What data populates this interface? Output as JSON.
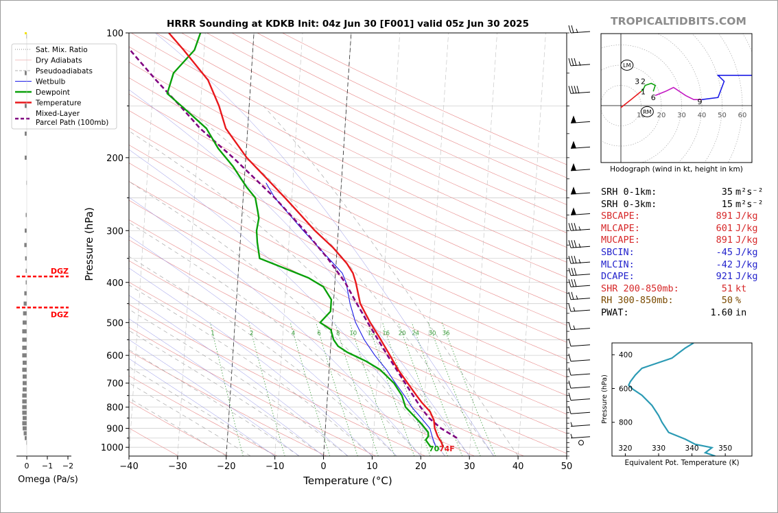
{
  "title": "HRRR Sounding at KDKB Init: 04z Jun 30 [F001] valid 05z Jun 30 2025",
  "brand": "TROPICALTIDBITS.COM",
  "colors": {
    "temperature": "#e8181c",
    "dewpoint": "#0aa00a",
    "parcel": "#800080",
    "wetbulb": "#1a1ae6",
    "dgz": "#ff0000",
    "theta_e": "#2b9ab4",
    "stat_red": "#d62728",
    "stat_blue": "#2222cc",
    "stat_brown": "#7a4a00"
  },
  "legend": [
    {
      "label": "Sat. Mix. Ratio",
      "style": "dotted",
      "color": "#666666"
    },
    {
      "label": "Dry Adiabats",
      "style": "solid-thin",
      "color": "#e88a8a"
    },
    {
      "label": "Pseudoadiabats",
      "style": "dashed",
      "color": "#999999"
    },
    {
      "label": "Wetbulb",
      "style": "solid",
      "color": "#1a1ae6"
    },
    {
      "label": "Dewpoint",
      "style": "thick",
      "color": "#0aa00a"
    },
    {
      "label": "Temperature",
      "style": "thick",
      "color": "#e8181c"
    },
    {
      "label": "Mixed-Layer",
      "label2": "Parcel Path (100mb)",
      "style": "thick-dashed",
      "color": "#800080"
    }
  ],
  "omega_label": "Omega (Pa/s)",
  "omega_ticks": [
    "0",
    "−1",
    "−2"
  ],
  "dgz_label": "DGZ",
  "surface_annotation": {
    "dewpoint": "70",
    "temperature": "74F"
  },
  "hodograph": {
    "caption": "Hodograph (wind in kt, height in km)",
    "ring_labels": [
      "10",
      "20",
      "30",
      "40",
      "50",
      "60"
    ],
    "markers": [
      "LM",
      "RM"
    ],
    "height_labels": [
      "3",
      "2",
      "1",
      "6",
      "9"
    ]
  },
  "stats": [
    {
      "label": "SRH 0-1km:",
      "value": "35",
      "unit": "m²s⁻²",
      "color": "#000000"
    },
    {
      "label": "SRH 0-3km:",
      "value": "15",
      "unit": "m²s⁻²",
      "color": "#000000"
    },
    {
      "label": "SBCAPE:",
      "value": "891",
      "unit": "J/kg",
      "color": "#d62728"
    },
    {
      "label": "MLCAPE:",
      "value": "601",
      "unit": "J/kg",
      "color": "#d62728"
    },
    {
      "label": "MUCAPE:",
      "value": "891",
      "unit": "J/kg",
      "color": "#d62728"
    },
    {
      "label": "SBCIN:",
      "value": "-45",
      "unit": "J/kg",
      "color": "#2222cc"
    },
    {
      "label": "MLCIN:",
      "value": "-42",
      "unit": "J/kg",
      "color": "#2222cc"
    },
    {
      "label": "DCAPE:",
      "value": "921",
      "unit": "J/kg",
      "color": "#2222cc"
    },
    {
      "label": "SHR 200-850mb:",
      "value": "51",
      "unit": "kt",
      "color": "#d62728"
    },
    {
      "label": "RH 300-850mb:",
      "value": "50",
      "unit": "%",
      "color": "#7a4a00"
    },
    {
      "label": "PWAT:",
      "value": "1.60",
      "unit": "in",
      "color": "#000000"
    }
  ],
  "chart_data": [
    {
      "type": "line",
      "name": "skew-t",
      "xlabel": "Temperature (°C)",
      "ylabel": "Pressure (hPa)",
      "xlim": [
        -40,
        50
      ],
      "ylim": [
        1050,
        100
      ],
      "yscale": "log",
      "x_ticks": [
        "−40",
        "−30",
        "−20",
        "−10",
        "0",
        "10",
        "20",
        "30",
        "40",
        "50"
      ],
      "y_ticks": [
        "100",
        "200",
        "300",
        "400",
        "500",
        "600",
        "700",
        "800",
        "900",
        "1000"
      ],
      "mixing_ratio_labels": [
        "1",
        "2",
        "4",
        "6",
        "8",
        "10",
        "13",
        "16",
        "20",
        "24",
        "30",
        "36"
      ],
      "series": [
        {
          "name": "Temperature",
          "points": [
            [
              1000,
              24.5
            ],
            [
              970,
              24
            ],
            [
              940,
              23.2
            ],
            [
              900,
              22.5
            ],
            [
              860,
              22.2
            ],
            [
              820,
              21.3
            ],
            [
              780,
              19.5
            ],
            [
              750,
              18.3
            ],
            [
              700,
              16.3
            ],
            [
              650,
              14.2
            ],
            [
              600,
              12.3
            ],
            [
              550,
              10.2
            ],
            [
              500,
              7.8
            ],
            [
              450,
              5.5
            ],
            [
              400,
              4.3
            ],
            [
              380,
              3.6
            ],
            [
              360,
              2.2
            ],
            [
              330,
              -0.8
            ],
            [
              300,
              -4.8
            ],
            [
              270,
              -8.6
            ],
            [
              250,
              -11.4
            ],
            [
              230,
              -14.5
            ],
            [
              200,
              -19.8
            ],
            [
              170,
              -24.5
            ],
            [
              150,
              -26.2
            ],
            [
              130,
              -28.8
            ],
            [
              110,
              -34.2
            ],
            [
              100,
              -37.5
            ]
          ]
        },
        {
          "name": "Dewpoint",
          "points": [
            [
              1000,
              22
            ],
            [
              980,
              21.4
            ],
            [
              960,
              20.8
            ],
            [
              940,
              21.3
            ],
            [
              920,
              21.2
            ],
            [
              880,
              19.8
            ],
            [
              850,
              18.5
            ],
            [
              800,
              16.2
            ],
            [
              750,
              15.3
            ],
            [
              700,
              13.5
            ],
            [
              650,
              10.5
            ],
            [
              620,
              7.5
            ],
            [
              590,
              3.5
            ],
            [
              570,
              1.5
            ],
            [
              550,
              0.5
            ],
            [
              520,
              -0.2
            ],
            [
              500,
              -2.5
            ],
            [
              470,
              -0.5
            ],
            [
              440,
              -0.5
            ],
            [
              410,
              -2.3
            ],
            [
              390,
              -5.5
            ],
            [
              370,
              -10.5
            ],
            [
              350,
              -15.8
            ],
            [
              320,
              -16.5
            ],
            [
              300,
              -16.8
            ],
            [
              280,
              -16.5
            ],
            [
              270,
              -16.8
            ],
            [
              250,
              -17.5
            ],
            [
              235,
              -19.5
            ],
            [
              210,
              -22.5
            ],
            [
              190,
              -25.8
            ],
            [
              170,
              -28.5
            ],
            [
              155,
              -32.5
            ],
            [
              140,
              -37
            ],
            [
              125,
              -36
            ],
            [
              110,
              -32
            ],
            [
              100,
              -31
            ]
          ]
        },
        {
          "name": "Wetbulb",
          "points": [
            [
              1000,
              23
            ],
            [
              950,
              22.2
            ],
            [
              900,
              21.5
            ],
            [
              850,
              19.6
            ],
            [
              800,
              17.5
            ],
            [
              750,
              15.8
            ],
            [
              700,
              13.8
            ],
            [
              650,
              11.8
            ],
            [
              600,
              9.2
            ],
            [
              550,
              6.8
            ],
            [
              500,
              4.8
            ],
            [
              450,
              3.4
            ],
            [
              400,
              2.3
            ],
            [
              380,
              1.4
            ],
            [
              350,
              -1.6
            ],
            [
              300,
              -7.2
            ],
            [
              250,
              -13.5
            ],
            [
              230,
              -15.5
            ]
          ]
        },
        {
          "name": "Mixed-Layer Parcel Path (100mb)",
          "points": [
            [
              950,
              27.2
            ],
            [
              900,
              23.8
            ],
            [
              850,
              21.2
            ],
            [
              800,
              19.3
            ],
            [
              700,
              15.8
            ],
            [
              600,
              11.8
            ],
            [
              500,
              7.3
            ],
            [
              450,
              4.8
            ],
            [
              400,
              2.1
            ],
            [
              350,
              -1.8
            ],
            [
              300,
              -6.9
            ],
            [
              250,
              -13.5
            ],
            [
              200,
              -22.6
            ],
            [
              170,
              -29.8
            ],
            [
              150,
              -34.2
            ],
            [
              130,
              -39.5
            ],
            [
              100,
              -48.5
            ]
          ]
        }
      ],
      "dgz_pressures": [
        387,
        460
      ],
      "wind_barbs_kt": [
        {
          "p": 100,
          "kt": 25
        },
        {
          "p": 120,
          "kt": 35
        },
        {
          "p": 140,
          "kt": 40
        },
        {
          "p": 165,
          "kt": 50
        },
        {
          "p": 190,
          "kt": 50
        },
        {
          "p": 215,
          "kt": 50
        },
        {
          "p": 245,
          "kt": 50
        },
        {
          "p": 275,
          "kt": 50
        },
        {
          "p": 300,
          "kt": 35
        },
        {
          "p": 330,
          "kt": 35
        },
        {
          "p": 360,
          "kt": 35
        },
        {
          "p": 385,
          "kt": 30
        },
        {
          "p": 410,
          "kt": 30
        },
        {
          "p": 440,
          "kt": 25
        },
        {
          "p": 470,
          "kt": 15
        },
        {
          "p": 520,
          "kt": 15
        },
        {
          "p": 570,
          "kt": 10
        },
        {
          "p": 620,
          "kt": 10
        },
        {
          "p": 670,
          "kt": 10
        },
        {
          "p": 720,
          "kt": 10
        },
        {
          "p": 770,
          "kt": 10
        },
        {
          "p": 830,
          "kt": 10
        },
        {
          "p": 890,
          "kt": 5
        },
        {
          "p": 950,
          "kt": 5
        },
        {
          "p": 990,
          "kt": 0
        }
      ]
    },
    {
      "type": "bar",
      "name": "omega",
      "xlabel": "Omega (Pa/s)",
      "xlim": [
        0.3,
        -2
      ],
      "values": [
        {
          "p": 102,
          "v": -0.02
        },
        {
          "p": 125,
          "v": -0.1
        },
        {
          "p": 150,
          "v": -0.1
        },
        {
          "p": 175,
          "v": -0.1
        },
        {
          "p": 200,
          "v": -0.1
        },
        {
          "p": 230,
          "v": -0.02
        },
        {
          "p": 275,
          "v": -0.05
        },
        {
          "p": 300,
          "v": -0.1
        },
        {
          "p": 325,
          "v": -0.12
        },
        {
          "p": 350,
          "v": -0.08
        },
        {
          "p": 375,
          "v": -0.05
        },
        {
          "p": 400,
          "v": -0.05
        },
        {
          "p": 425,
          "v": -0.12
        },
        {
          "p": 450,
          "v": -0.15
        },
        {
          "p": 475,
          "v": -0.18
        },
        {
          "p": 500,
          "v": -0.2
        },
        {
          "p": 525,
          "v": -0.22
        },
        {
          "p": 550,
          "v": -0.22
        },
        {
          "p": 575,
          "v": -0.22
        },
        {
          "p": 600,
          "v": -0.22
        },
        {
          "p": 625,
          "v": -0.2
        },
        {
          "p": 650,
          "v": -0.22
        },
        {
          "p": 675,
          "v": -0.2
        },
        {
          "p": 700,
          "v": -0.2
        },
        {
          "p": 725,
          "v": -0.2
        },
        {
          "p": 750,
          "v": -0.22
        },
        {
          "p": 775,
          "v": -0.22
        },
        {
          "p": 800,
          "v": -0.22
        },
        {
          "p": 825,
          "v": -0.22
        },
        {
          "p": 850,
          "v": -0.2
        },
        {
          "p": 875,
          "v": -0.22
        },
        {
          "p": 900,
          "v": -0.2
        },
        {
          "p": 925,
          "v": -0.15
        },
        {
          "p": 950,
          "v": -0.1
        },
        {
          "p": 975,
          "v": -0.02
        }
      ]
    },
    {
      "type": "line",
      "name": "hodograph",
      "xlim": [
        -10,
        65
      ],
      "ylim": [
        -30,
        35
      ],
      "segments": [
        {
          "color": "#e8181c",
          "points": [
            [
              0,
              -1
            ],
            [
              5,
              3
            ],
            [
              10,
              7
            ]
          ]
        },
        {
          "color": "#0aa00a",
          "points": [
            [
              10,
              7
            ],
            [
              11,
              8
            ],
            [
              12,
              10
            ],
            [
              15,
              11
            ],
            [
              17,
              10
            ],
            [
              16,
              7
            ]
          ]
        },
        {
          "color": "#c218c2",
          "points": [
            [
              17,
              5
            ],
            [
              22,
              7
            ],
            [
              26,
              9
            ],
            [
              32,
              5
            ],
            [
              36,
              3
            ],
            [
              40,
              3
            ]
          ]
        },
        {
          "color": "#1a1ae6",
          "points": [
            [
              40,
              3
            ],
            [
              48,
              4
            ],
            [
              51,
              12
            ],
            [
              48,
              15
            ],
            [
              60,
              15
            ],
            [
              67,
              15
            ]
          ]
        }
      ]
    },
    {
      "type": "line",
      "name": "equivalent-potential-temperature",
      "xlabel": "Equivalent Pot. Temperature (K)",
      "ylabel": "Pressure (hPa)",
      "xlim": [
        316,
        358
      ],
      "ylim": [
        1000,
        330
      ],
      "x_ticks": [
        "320",
        "330",
        "340",
        "350"
      ],
      "y_ticks": [
        "400",
        "600",
        "800"
      ],
      "series": [
        {
          "name": "theta-e",
          "points": [
            [
              1000,
              347
            ],
            [
              980,
              344
            ],
            [
              950,
              346
            ],
            [
              930,
              341
            ],
            [
              900,
              338
            ],
            [
              860,
              333
            ],
            [
              800,
              331
            ],
            [
              760,
              330
            ],
            [
              700,
              328
            ],
            [
              640,
              325
            ],
            [
              600,
              322
            ],
            [
              580,
              321
            ],
            [
              560,
              321.5
            ],
            [
              520,
              323
            ],
            [
              480,
              325
            ],
            [
              460,
              328
            ],
            [
              420,
              334
            ],
            [
              390,
              336
            ],
            [
              360,
              338
            ],
            [
              330,
              340.5
            ]
          ]
        }
      ]
    }
  ]
}
